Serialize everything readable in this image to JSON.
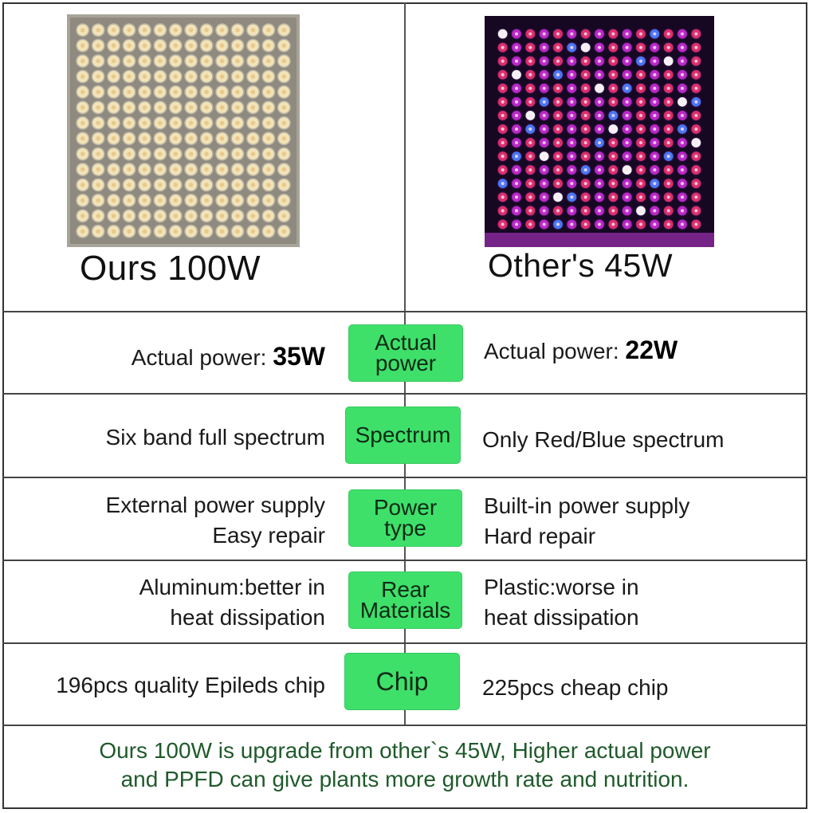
{
  "header": {
    "ours_caption": "Ours 100W",
    "other_caption": "Other's 45W"
  },
  "panels": {
    "ours": {
      "led_color": "#f2e3b8",
      "led_grid": "14x14",
      "panel_color": "#8f8a80"
    },
    "other": {
      "led_colors": [
        "#e6306f",
        "#c22ad0",
        "#4c7cff",
        "#ffffff"
      ],
      "led_grid": "15x15",
      "panel_color": "#160822"
    }
  },
  "rows": [
    {
      "badge": [
        "Actual",
        "power"
      ],
      "left_text": "Actual power: ",
      "left_value": "35W",
      "right_text": "Actual power: ",
      "right_value": "22W"
    },
    {
      "badge": [
        "Spectrum"
      ],
      "left_lines": [
        "Six band full spectrum"
      ],
      "right_lines": [
        "Only Red/Blue spectrum"
      ]
    },
    {
      "badge": [
        "Power",
        "type"
      ],
      "left_lines": [
        "External power supply",
        "Easy repair"
      ],
      "right_lines": [
        "Built-in power supply",
        "Hard repair"
      ]
    },
    {
      "badge": [
        "Rear",
        "Materials"
      ],
      "left_lines": [
        "Aluminum:better in",
        "heat dissipation"
      ],
      "right_lines": [
        "Plastic:worse in",
        "heat dissipation"
      ]
    },
    {
      "badge": [
        "Chip"
      ],
      "left_lines": [
        "196pcs quality Epileds chip"
      ],
      "right_lines": [
        "225pcs cheap chip"
      ]
    }
  ],
  "footer": {
    "line1": "Ours 100W is upgrade from other`s 45W, Higher actual power",
    "line2": "and PPFD can give plants more growth rate and nutrition."
  },
  "colors": {
    "badge_green": "#3ee06a",
    "footer_text": "#1f5a2b"
  }
}
